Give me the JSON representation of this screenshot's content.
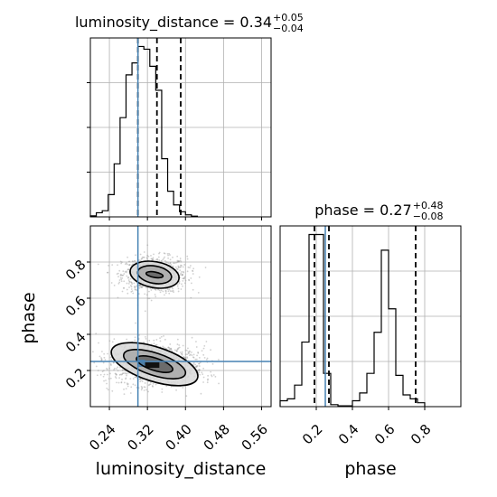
{
  "chart_data": {
    "type": "corner",
    "parameters": [
      "luminosity_distance",
      "phase"
    ],
    "truths": {
      "luminosity_distance": 0.3,
      "phase": 0.25
    },
    "colors": {
      "hist": "#000000",
      "truth": "#4682b4",
      "density": "#000000",
      "points": "#9a9a9a"
    },
    "grid": true,
    "panels": {
      "lum_hist": {
        "title_main": "luminosity_distance = 0.34",
        "title_sup": "+0.05",
        "title_sub": "−0.04",
        "bin_edges_start": 0.2,
        "bin_width": 0.0125,
        "counts": [
          0.3,
          1.2,
          1.8,
          6.5,
          15.5,
          29.0,
          41.5,
          45.0,
          49.8,
          49.0,
          44.0,
          37.0,
          17.0,
          7.5,
          3.5,
          1.5,
          0.6,
          0.2
        ],
        "quantiles": [
          0.3,
          0.34,
          0.39
        ],
        "xlim": [
          0.2,
          0.58
        ]
      },
      "phase_hist": {
        "title_main": "phase = 0.27",
        "title_sup": "+0.48",
        "title_sub": "−0.08",
        "bin_edges_start": 0.0,
        "bin_width": 0.04,
        "counts": [
          1.5,
          2.0,
          5.5,
          16.5,
          44.0,
          44.0,
          8.5,
          0.5,
          0.2,
          0.2,
          1.5,
          3.5,
          8.5,
          19.0,
          40.0,
          25.0,
          8.0,
          3.0,
          2.0,
          1.0
        ],
        "quantiles": [
          0.19,
          0.27,
          0.75
        ],
        "xlim": [
          0.0,
          1.0
        ]
      },
      "scatter": {
        "xlim": [
          0.2,
          0.58
        ],
        "ylim": [
          0.0,
          1.0
        ],
        "modes": [
          {
            "cx": 0.335,
            "cy": 0.73,
            "levels": [
              [
                0.052,
                0.072
              ],
              [
                0.036,
                0.048
              ],
              [
                0.018,
                0.015
              ]
            ]
          },
          {
            "cx": 0.335,
            "cy": 0.235,
            "levels": [
              [
                0.095,
                0.095
              ],
              [
                0.068,
                0.062
              ],
              [
                0.04,
                0.034
              ]
            ]
          }
        ]
      }
    },
    "axes": {
      "lum_ticks": [
        "0.24",
        "0.32",
        "0.40",
        "0.48",
        "0.56"
      ],
      "lum_tick_values": [
        0.24,
        0.32,
        0.4,
        0.48,
        0.56
      ],
      "phase_x_ticks": [
        "0.2",
        "0.4",
        "0.6",
        "0.8"
      ],
      "phase_x_tick_values": [
        0.2,
        0.4,
        0.6,
        0.8
      ],
      "phase_y_ticks": [
        "0.2",
        "0.4",
        "0.6",
        "0.8"
      ],
      "phase_y_tick_values": [
        0.2,
        0.4,
        0.6,
        0.8
      ],
      "xlabel_left": "luminosity_distance",
      "xlabel_right": "phase",
      "ylabel": "phase"
    }
  }
}
